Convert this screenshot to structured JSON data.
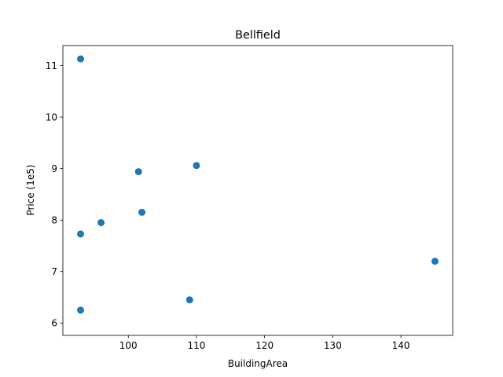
{
  "chart_data": {
    "type": "scatter",
    "title": "Bellfield",
    "xlabel": "BuildingArea",
    "ylabel": "Price (1e5)",
    "xlim": [
      90.4,
      147.6
    ],
    "ylim": [
      5.76,
      11.39
    ],
    "xticks": [
      100,
      110,
      120,
      130,
      140
    ],
    "yticks": [
      6,
      7,
      8,
      9,
      10,
      11
    ],
    "grid": false,
    "marker_color": "#1f77b4",
    "points": [
      {
        "x": 93,
        "y": 11.13
      },
      {
        "x": 110,
        "y": 9.06
      },
      {
        "x": 101.5,
        "y": 8.94
      },
      {
        "x": 102,
        "y": 8.15
      },
      {
        "x": 96,
        "y": 7.95
      },
      {
        "x": 93,
        "y": 7.73
      },
      {
        "x": 145,
        "y": 7.2
      },
      {
        "x": 109,
        "y": 6.45
      },
      {
        "x": 93,
        "y": 6.25
      }
    ]
  }
}
